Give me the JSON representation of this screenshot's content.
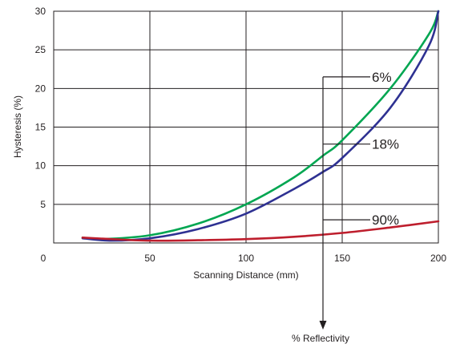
{
  "chart_data": {
    "type": "line",
    "xlabel": "Scanning Distance (mm)",
    "ylabel": "Hysteresis (%)",
    "xlim": [
      0,
      200
    ],
    "ylim": [
      0,
      30
    ],
    "x_ticks": [
      "0",
      "50",
      "100",
      "150",
      "200"
    ],
    "y_ticks": [
      "5",
      "10",
      "15",
      "20",
      "25",
      "30"
    ],
    "grid": true,
    "series": [
      {
        "name": "6%",
        "color": "#00a651",
        "x": [
          15,
          25,
          50,
          75,
          100,
          125,
          140,
          150,
          175,
          195,
          200
        ],
        "y": [
          0.7,
          0.5,
          1.0,
          2.5,
          5.0,
          8.5,
          11.3,
          13.3,
          20.0,
          27.0,
          30.0
        ]
      },
      {
        "name": "18%",
        "color": "#2e3192",
        "x": [
          15,
          30,
          50,
          75,
          100,
          125,
          140,
          150,
          175,
          195,
          200
        ],
        "y": [
          0.6,
          0.3,
          0.6,
          1.8,
          3.8,
          7.0,
          9.2,
          11.0,
          17.5,
          25.5,
          30.0
        ]
      },
      {
        "name": "90%",
        "color": "#be1e2d",
        "x": [
          15,
          30,
          50,
          75,
          100,
          125,
          150,
          175,
          200
        ],
        "y": [
          0.7,
          0.5,
          0.3,
          0.35,
          0.5,
          0.8,
          1.3,
          2.0,
          2.8
        ]
      }
    ],
    "annotation": {
      "label": "% Reflectivity",
      "x": 140,
      "callouts": [
        {
          "label": "6%",
          "y": 21.5
        },
        {
          "label": "18%",
          "y": 12.8
        },
        {
          "label": "90%",
          "y": 3.0
        }
      ]
    }
  }
}
